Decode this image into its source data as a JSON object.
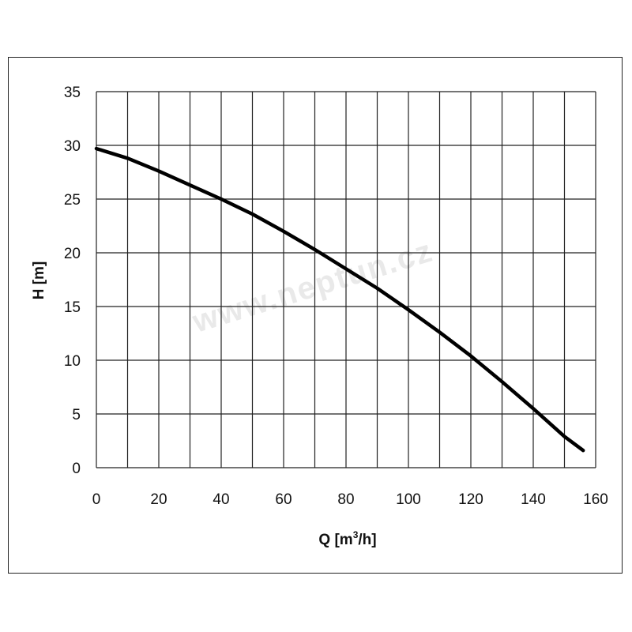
{
  "watermark": "www.neptun.cz",
  "chart_data": {
    "type": "line",
    "xlabel": "Q [m",
    "xlabel_sup": "3",
    "xlabel_tail": "/h]",
    "ylabel": "H [m]",
    "xlim": [
      0,
      160
    ],
    "ylim": [
      0,
      35
    ],
    "xticks": [
      0,
      20,
      40,
      60,
      80,
      100,
      120,
      140,
      160
    ],
    "yticks": [
      0,
      5,
      10,
      15,
      20,
      25,
      30,
      35
    ],
    "x_grid_step": 10,
    "y_grid_step": 5,
    "grid": true,
    "series": [
      {
        "x": [
          0,
          10,
          20,
          30,
          40,
          50,
          60,
          70,
          80,
          90,
          100,
          110,
          120,
          130,
          140,
          150,
          156
        ],
        "y": [
          29.7,
          28.8,
          27.6,
          26.3,
          25.0,
          23.6,
          22.0,
          20.3,
          18.5,
          16.7,
          14.7,
          12.6,
          10.4,
          8.0,
          5.5,
          2.9,
          1.6
        ]
      }
    ]
  }
}
